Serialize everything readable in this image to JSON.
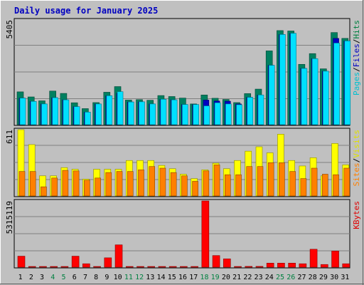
{
  "chart_data": [
    {
      "panel": "pages-files-hits",
      "type": "bar",
      "title": "Daily usage for January 2025",
      "ylabel_parts": [
        {
          "text": "Pages",
          "color": "#00c0d0"
        },
        {
          "text": "/",
          "color": "#000000"
        },
        {
          "text": "Files",
          "color": "#0000c0"
        },
        {
          "text": "/",
          "color": "#000000"
        },
        {
          "text": "Hits",
          "color": "#008040"
        }
      ],
      "ymax_label": "5405",
      "ylim": [
        0,
        5405
      ],
      "grid": true,
      "categories": [
        "1",
        "2",
        "3",
        "4",
        "5",
        "6",
        "7",
        "8",
        "9",
        "10",
        "11",
        "12",
        "13",
        "14",
        "15",
        "16",
        "17",
        "18",
        "19",
        "20",
        "21",
        "22",
        "23",
        "24",
        "25",
        "26",
        "27",
        "28",
        "29",
        "30",
        "31"
      ],
      "series": [
        {
          "name": "Hits",
          "color": "#008060",
          "values": [
            1720,
            1460,
            1260,
            1760,
            1640,
            1160,
            860,
            1170,
            1700,
            1990,
            1300,
            1320,
            1290,
            1530,
            1480,
            1400,
            1100,
            1560,
            1390,
            1330,
            1170,
            1630,
            1860,
            3820,
            4860,
            4840,
            3130,
            3680,
            2900,
            4760,
            4460
          ]
        },
        {
          "name": "Files",
          "color": "#0000c0",
          "values": [
            1400,
            1230,
            1100,
            1420,
            1310,
            960,
            680,
            1100,
            1520,
            1650,
            1200,
            1210,
            1100,
            1340,
            1310,
            1070,
            1070,
            1300,
            1250,
            1240,
            1100,
            1440,
            1560,
            3080,
            4660,
            4720,
            2920,
            3420,
            2780,
            4460,
            4330
          ]
        },
        {
          "name": "Pages",
          "color": "#00e0ff",
          "values": [
            1400,
            1230,
            1100,
            1420,
            1310,
            960,
            680,
            1100,
            1520,
            1730,
            1200,
            1210,
            1100,
            1340,
            1310,
            1070,
            1070,
            1000,
            1160,
            1100,
            1060,
            1440,
            1560,
            3080,
            4660,
            4720,
            2920,
            3420,
            2780,
            4220,
            4330
          ]
        }
      ]
    },
    {
      "panel": "sites-visits",
      "type": "bar",
      "ylabel_parts": [
        {
          "text": "Sites",
          "color": "#ff8000"
        },
        {
          "text": "/",
          "color": "#000000"
        },
        {
          "text": "Visits",
          "color": "#e0e000"
        }
      ],
      "ymax_label": "611",
      "ylim": [
        0,
        611
      ],
      "grid": true,
      "categories": [
        "1",
        "2",
        "3",
        "4",
        "5",
        "6",
        "7",
        "8",
        "9",
        "10",
        "11",
        "12",
        "13",
        "14",
        "15",
        "16",
        "17",
        "18",
        "19",
        "20",
        "21",
        "22",
        "23",
        "24",
        "25",
        "26",
        "27",
        "28",
        "29",
        "30",
        "31"
      ],
      "series": [
        {
          "name": "Visits",
          "color": "#ffff00",
          "values": [
            611,
            475,
            190,
            190,
            265,
            250,
            160,
            250,
            250,
            250,
            330,
            330,
            330,
            285,
            255,
            205,
            165,
            245,
            305,
            255,
            330,
            415,
            455,
            400,
            570,
            330,
            280,
            355,
            190,
            485,
            290
          ]
        },
        {
          "name": "Sites",
          "color": "#ff8000",
          "values": [
            230,
            230,
            90,
            170,
            240,
            235,
            150,
            170,
            220,
            230,
            230,
            245,
            275,
            260,
            220,
            190,
            140,
            235,
            290,
            200,
            200,
            275,
            275,
            310,
            310,
            230,
            165,
            260,
            205,
            200,
            260
          ]
        }
      ]
    },
    {
      "panel": "kbytes",
      "type": "bar",
      "ylabel_parts": [
        {
          "text": "KBytes",
          "color": "#e00000"
        }
      ],
      "ymax_label": "5315119",
      "ylim": [
        0,
        5315119
      ],
      "grid": true,
      "categories": [
        "1",
        "2",
        "3",
        "4",
        "5",
        "6",
        "7",
        "8",
        "9",
        "10",
        "11",
        "12",
        "13",
        "14",
        "15",
        "16",
        "17",
        "18",
        "19",
        "20",
        "21",
        "22",
        "23",
        "24",
        "25",
        "26",
        "27",
        "28",
        "29",
        "30",
        "31"
      ],
      "weekend_color": "#008040",
      "weekend_days": [
        "4",
        "5",
        "11",
        "12",
        "18",
        "19",
        "25",
        "26"
      ],
      "series": [
        {
          "name": "KBytes",
          "color": "#ff0000",
          "values": [
            930000,
            60000,
            60000,
            60000,
            60000,
            930000,
            330000,
            60000,
            800000,
            1830000,
            60000,
            60000,
            60000,
            60000,
            60000,
            60000,
            60000,
            5315119,
            980000,
            720000,
            60000,
            120000,
            120000,
            380000,
            380000,
            380000,
            330000,
            1480000,
            270000,
            1340000,
            330000
          ]
        }
      ]
    }
  ]
}
